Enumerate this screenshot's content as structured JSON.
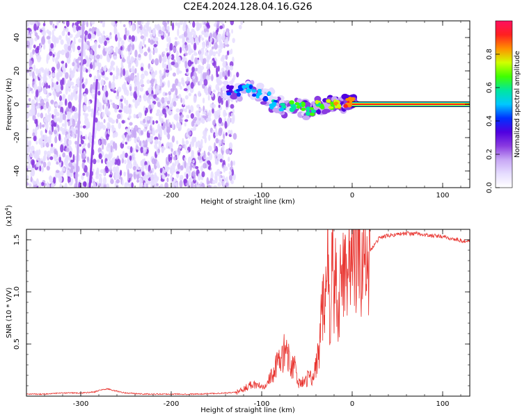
{
  "figure": {
    "title": "C2E4.2024.128.04.16.G26"
  },
  "colors": {
    "background": "#ffffff",
    "axes": "#000000",
    "snr_line": "#e8312c",
    "spectrum_palette": [
      "#ffffff",
      "#e6ddff",
      "#c8a8f5",
      "#8a3be0",
      "#5000e0",
      "#0030ff",
      "#00c8ff",
      "#00e6a0",
      "#40ff00",
      "#d0ff00",
      "#ff9000",
      "#ff2020",
      "#ff1060"
    ]
  },
  "chart_data": [
    {
      "type": "heatmap",
      "title": "",
      "xlabel": "Height of straight line (km)",
      "ylabel": "Frequency (Hz)",
      "xlim": [
        -360,
        130
      ],
      "ylim": [
        -50,
        50
      ],
      "xticks": [
        -300,
        -200,
        -100,
        0,
        100
      ],
      "yticks": [
        -40,
        -20,
        0,
        20,
        40
      ],
      "grid": false,
      "colorbar": {
        "label": "Normalized spectral amplitude",
        "range": [
          0,
          1
        ],
        "ticks": [
          "0.0",
          "0.2",
          "0.4",
          "0.6",
          "0.8"
        ],
        "tick_values": [
          0,
          0.2,
          0.4,
          0.6,
          0.8
        ]
      },
      "features": {
        "noise_region_km": [
          -360,
          -130
        ],
        "signal_track": [
          {
            "x": -135,
            "y": 8,
            "amp": 0.45
          },
          {
            "x": -125,
            "y": 8,
            "amp": 0.5
          },
          {
            "x": -115,
            "y": 9,
            "amp": 0.55
          },
          {
            "x": -105,
            "y": 7,
            "amp": 0.55
          },
          {
            "x": -95,
            "y": 4,
            "amp": 0.5
          },
          {
            "x": -85,
            "y": 0,
            "amp": 0.6
          },
          {
            "x": -75,
            "y": -2,
            "amp": 0.6
          },
          {
            "x": -65,
            "y": -1,
            "amp": 0.65
          },
          {
            "x": -55,
            "y": -2,
            "amp": 0.7
          },
          {
            "x": -45,
            "y": -4,
            "amp": 0.7
          },
          {
            "x": -35,
            "y": -1,
            "amp": 0.75
          },
          {
            "x": -25,
            "y": 0,
            "amp": 0.8
          },
          {
            "x": -15,
            "y": 0,
            "amp": 0.85
          },
          {
            "x": -5,
            "y": 1,
            "amp": 0.9
          },
          {
            "x": 0,
            "y": 1,
            "amp": 0.9
          }
        ],
        "steady_line": {
          "x_from": 0,
          "x_to": 130,
          "y": 0,
          "amp": 1.0
        },
        "diagonal_streaks": [
          {
            "x1": -305,
            "y1": -50,
            "x2": -297,
            "y2": 50,
            "amp": 0.2
          },
          {
            "x1": -290,
            "y1": -50,
            "x2": -282,
            "y2": 15,
            "amp": 0.25
          }
        ]
      }
    },
    {
      "type": "line",
      "title": "",
      "xlabel": "Height of straight line (km)",
      "ylabel": "SNR (10 * V/V)",
      "y_multiplier": "(x10",
      "y_multiplier_exp": "4",
      "xlim": [
        -360,
        130
      ],
      "ylim": [
        0,
        1.6
      ],
      "xticks": [
        -300,
        -200,
        -100,
        0,
        100
      ],
      "yticks": [
        "0.5",
        "1.0",
        "1.5"
      ],
      "ytick_values": [
        0.5,
        1.0,
        1.5
      ],
      "grid": false,
      "series": [
        {
          "x": [
            -360,
            -340,
            -320,
            -300,
            -285,
            -278,
            -270,
            -262,
            -250,
            -230,
            -200,
            -170,
            -140,
            -125,
            -118,
            -110,
            -100,
            -92,
            -84,
            -78,
            -72,
            -68,
            -64,
            -60,
            -56,
            -52,
            -48,
            -44,
            -40,
            -36,
            -33,
            -30,
            -27,
            -24,
            -22,
            -20,
            -18,
            -16,
            -13,
            -10,
            -6,
            -2,
            2,
            6,
            10,
            15,
            20,
            25,
            30,
            40,
            55,
            70,
            85,
            100,
            115,
            130
          ],
          "y": [
            0.02,
            0.02,
            0.03,
            0.03,
            0.04,
            0.06,
            0.07,
            0.05,
            0.03,
            0.02,
            0.02,
            0.02,
            0.03,
            0.04,
            0.08,
            0.12,
            0.1,
            0.15,
            0.28,
            0.38,
            0.45,
            0.22,
            0.35,
            0.1,
            0.16,
            0.12,
            0.2,
            0.15,
            0.3,
            0.5,
            0.9,
            0.75,
            1.35,
            0.6,
            1.55,
            0.9,
            1.1,
            0.55,
            1.2,
            1.15,
            1.35,
            1.3,
            1.3,
            1.35,
            1.38,
            1.25,
            1.4,
            1.45,
            1.52,
            1.54,
            1.56,
            1.56,
            1.54,
            1.53,
            1.5,
            1.48
          ]
        }
      ]
    }
  ]
}
